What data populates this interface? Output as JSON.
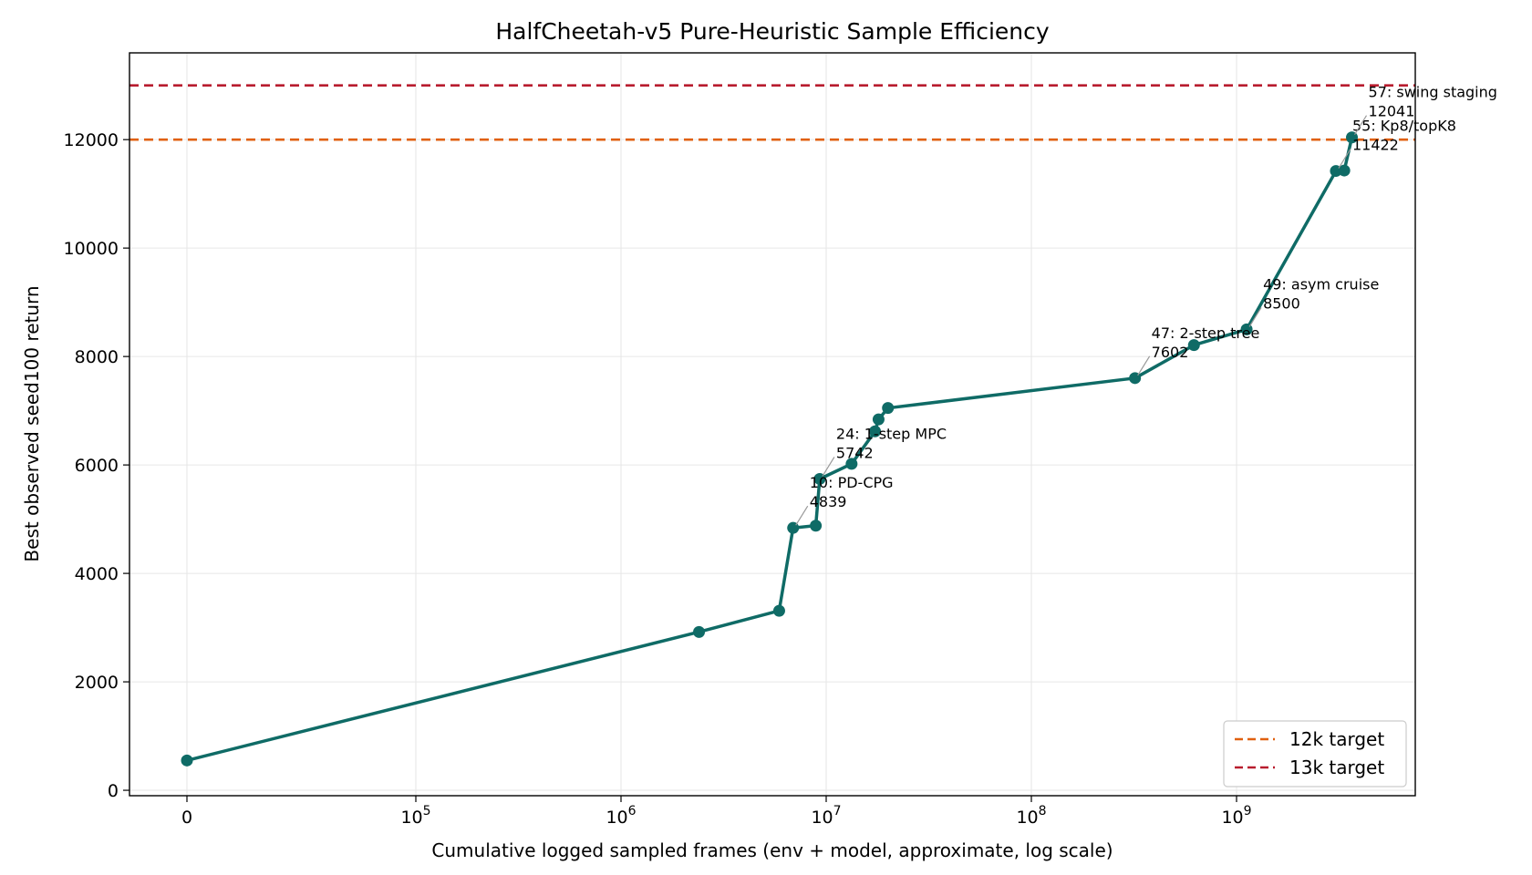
{
  "chart_data": {
    "type": "line",
    "title": "HalfCheetah-v5 Pure-Heuristic Sample Efficiency",
    "xlabel": "Cumulative logged sampled frames (env + model, approximate, log scale)",
    "ylabel": "Best observed seed100 return",
    "x_scale": "symlog",
    "x_ticks": [
      {
        "value": 0,
        "base": "0",
        "exp": ""
      },
      {
        "value": 100000,
        "base": "10",
        "exp": "5"
      },
      {
        "value": 1000000,
        "base": "10",
        "exp": "6"
      },
      {
        "value": 10000000,
        "base": "10",
        "exp": "7"
      },
      {
        "value": 100000000,
        "base": "10",
        "exp": "8"
      },
      {
        "value": 1000000000,
        "base": "10",
        "exp": "9"
      }
    ],
    "y_ticks": [
      0,
      2000,
      4000,
      6000,
      8000,
      10000,
      12000
    ],
    "ylim": [
      -100,
      13600
    ],
    "grid": true,
    "legend_position": "lower-right",
    "series": [
      {
        "name": "",
        "color": "#0f6b66",
        "x": [
          0,
          2400000,
          5900000,
          6900000,
          8900000,
          9300000,
          13300000,
          17300000,
          18000000,
          20000000,
          320000000,
          620000000,
          1120000000,
          3050000000,
          3350000000,
          3650000000
        ],
        "y": [
          550,
          2920,
          3310,
          4839,
          4880,
          5742,
          6020,
          6620,
          6840,
          7050,
          7602,
          8210,
          8500,
          11422,
          11430,
          12041
        ]
      }
    ],
    "reference_lines": [
      {
        "name": "12k target",
        "y": 12000,
        "color": "#e0600f",
        "style": "dashed"
      },
      {
        "name": "13k target",
        "y": 13000,
        "color": "#b81c2e",
        "style": "dashed"
      }
    ],
    "annotations": [
      {
        "label": "10: PD-CPG",
        "value": "4839",
        "x": 6900000,
        "y": 4839
      },
      {
        "label": "24: 1-step MPC",
        "value": "5742",
        "x": 9300000,
        "y": 5742
      },
      {
        "label": "47: 2-step tree",
        "value": "7602",
        "x": 320000000,
        "y": 7602
      },
      {
        "label": "49: asym cruise",
        "value": "8500",
        "x": 1120000000,
        "y": 8500
      },
      {
        "label": "55: Kp8/topK8",
        "value": "11422",
        "x": 3050000000,
        "y": 11422
      },
      {
        "label": "57: swing staging",
        "value": "12041",
        "x": 3650000000,
        "y": 12041
      }
    ]
  }
}
